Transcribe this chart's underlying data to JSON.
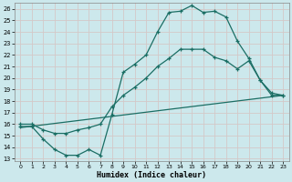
{
  "xlabel": "Humidex (Indice chaleur)",
  "bg_color": "#cce8ec",
  "grid_color": "#b8d8dc",
  "line_color": "#1a6e64",
  "xlim_min": -0.5,
  "xlim_max": 23.5,
  "ylim_min": 12.8,
  "ylim_max": 26.5,
  "yticks": [
    13,
    14,
    15,
    16,
    17,
    18,
    19,
    20,
    21,
    22,
    23,
    24,
    25,
    26
  ],
  "xticks": [
    0,
    1,
    2,
    3,
    4,
    5,
    6,
    7,
    8,
    9,
    10,
    11,
    12,
    13,
    14,
    15,
    16,
    17,
    18,
    19,
    20,
    21,
    22,
    23
  ],
  "series1_x": [
    0,
    1,
    2,
    3,
    4,
    5,
    6,
    7,
    8,
    9,
    10,
    11,
    12,
    13,
    14,
    15,
    16,
    17,
    18,
    19,
    20,
    21,
    22,
    23
  ],
  "series1_y": [
    15.8,
    15.8,
    14.7,
    13.8,
    13.3,
    13.3,
    13.8,
    13.3,
    16.8,
    20.5,
    21.2,
    22.0,
    24.0,
    25.7,
    25.8,
    26.3,
    25.7,
    25.8,
    25.3,
    23.2,
    21.7,
    19.8,
    18.7,
    18.5
  ],
  "series2_x": [
    0,
    1,
    2,
    3,
    4,
    5,
    6,
    7,
    8,
    9,
    10,
    11,
    12,
    13,
    14,
    15,
    16,
    17,
    18,
    19,
    20,
    21,
    22,
    23
  ],
  "series2_y": [
    16.0,
    16.0,
    15.5,
    15.2,
    15.2,
    15.5,
    15.7,
    16.0,
    17.5,
    18.5,
    19.2,
    20.0,
    21.0,
    21.7,
    22.5,
    22.5,
    22.5,
    21.8,
    21.5,
    20.8,
    21.5,
    19.8,
    18.5,
    18.5
  ],
  "series3_x": [
    0,
    23
  ],
  "series3_y": [
    15.7,
    18.5
  ]
}
